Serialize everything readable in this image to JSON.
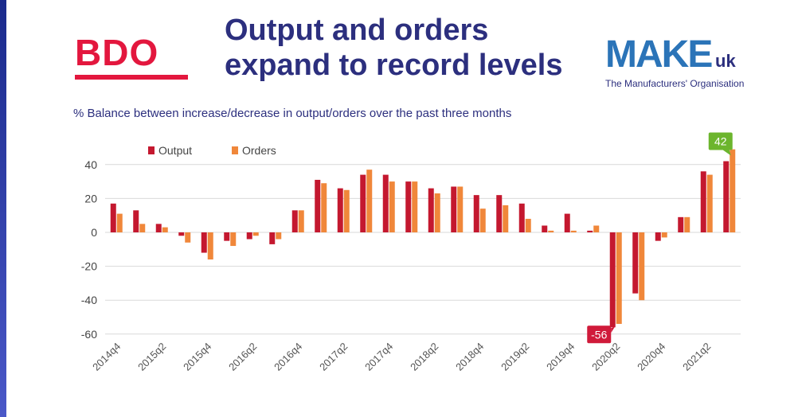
{
  "header": {
    "title_line1": "Output and orders",
    "title_line2": "expand to record levels",
    "subtitle": "% Balance between increase/decrease in output/orders over the past three months",
    "left_logo_text": "BDO",
    "right_logo_text": "MAKE",
    "right_logo_suffix": "uk",
    "right_logo_tagline": "The Manufacturers' Organisation"
  },
  "colors": {
    "output": "#c4182f",
    "orders": "#f0873a",
    "title": "#2c2f7e",
    "callout_low": "#d01a3a",
    "callout_high": "#6cb52d"
  },
  "chart_data": {
    "type": "bar",
    "categories": [
      "2014q4",
      "2015q1",
      "2015q2",
      "2015q3",
      "2015q4",
      "2016q1",
      "2016q2",
      "2016q3",
      "2016q4",
      "2017q1",
      "2017q2",
      "2017q3",
      "2017q4",
      "2018q1",
      "2018q2",
      "2018q3",
      "2018q4",
      "2019q1",
      "2019q2",
      "2019q3",
      "2019q4",
      "2020q1",
      "2020q2",
      "2020q3",
      "2020q4",
      "2021q1",
      "2021q2",
      "2021q3"
    ],
    "tick_labels_shown": [
      "2014q4",
      "2015q2",
      "2015q4",
      "2016q2",
      "2016q4",
      "2017q2",
      "2017q4",
      "2018q2",
      "2018q4",
      "2019q2",
      "2019q4",
      "2020q2",
      "2020q4",
      "2021q2"
    ],
    "series": [
      {
        "name": "Output",
        "values": [
          17,
          13,
          5,
          -2,
          -12,
          -5,
          -4,
          -7,
          13,
          31,
          26,
          34,
          34,
          30,
          26,
          27,
          22,
          22,
          17,
          4,
          11,
          1,
          -56,
          -36,
          -5,
          9,
          36,
          42
        ]
      },
      {
        "name": "Orders",
        "values": [
          11,
          5,
          3,
          -6,
          -16,
          -8,
          -2,
          -4,
          13,
          29,
          25,
          37,
          30,
          30,
          23,
          27,
          14,
          16,
          8,
          1,
          1,
          4,
          -54,
          -40,
          -3,
          9,
          34,
          49
        ]
      }
    ],
    "ylim": [
      -60,
      48
    ],
    "yticks": [
      40,
      20,
      0,
      -20,
      -40,
      -60
    ],
    "ytick_labels": [
      "40",
      "20",
      "0",
      "-20",
      "-40",
      "-60"
    ],
    "grid": true,
    "legend": "top-left",
    "annotations": [
      {
        "label": "-56",
        "category": "2020q2",
        "value": -56
      },
      {
        "label": "42",
        "category": "2021q3",
        "value": 42
      }
    ]
  }
}
